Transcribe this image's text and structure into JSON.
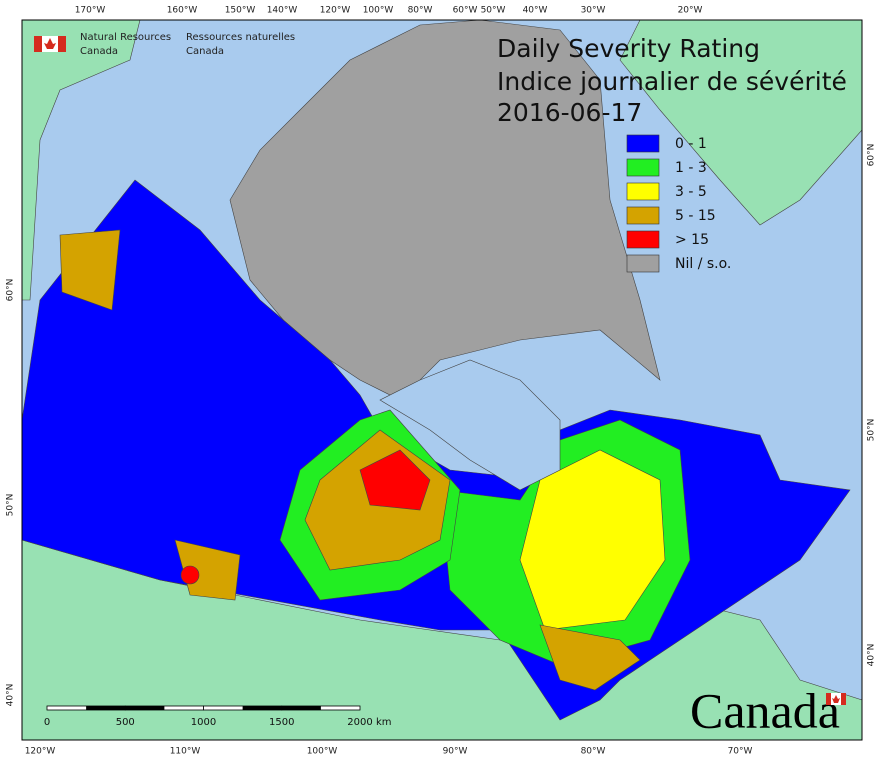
{
  "agency": {
    "en_line1": "Natural Resources",
    "en_line2": "Canada",
    "fr_line1": "Ressources naturelles",
    "fr_line2": "Canada"
  },
  "title": {
    "line1": "Daily Severity Rating",
    "line2": "Indice journalier de sévérité",
    "date": "2016-06-17"
  },
  "legend": [
    {
      "label": "0 - 1",
      "color": "#0000ff"
    },
    {
      "label": "1 - 3",
      "color": "#22ee22"
    },
    {
      "label": "3 - 5",
      "color": "#ffff00"
    },
    {
      "label": "5 - 15",
      "color": "#d4a300"
    },
    {
      "label": "> 15",
      "color": "#ff0000"
    },
    {
      "label": "Nil / s.o.",
      "color": "#a0a0a0"
    }
  ],
  "graticule": {
    "top": [
      "170°W",
      "160°W",
      "150°W",
      "140°W",
      "120°W",
      "100°W",
      "80°W",
      "60°W",
      "50°W",
      "40°W",
      "30°W",
      "20°W"
    ],
    "bottom": [
      "120°W",
      "110°W",
      "100°W",
      "90°W",
      "80°W",
      "70°W"
    ],
    "left": [
      "60°N",
      "50°N",
      "40°N"
    ],
    "right": [
      "60°N",
      "50°N",
      "40°N"
    ]
  },
  "scale_bar": {
    "labels": [
      "0",
      "500",
      "1000",
      "1500",
      "2000"
    ],
    "unit": "km"
  },
  "wordmark": "Canada"
}
